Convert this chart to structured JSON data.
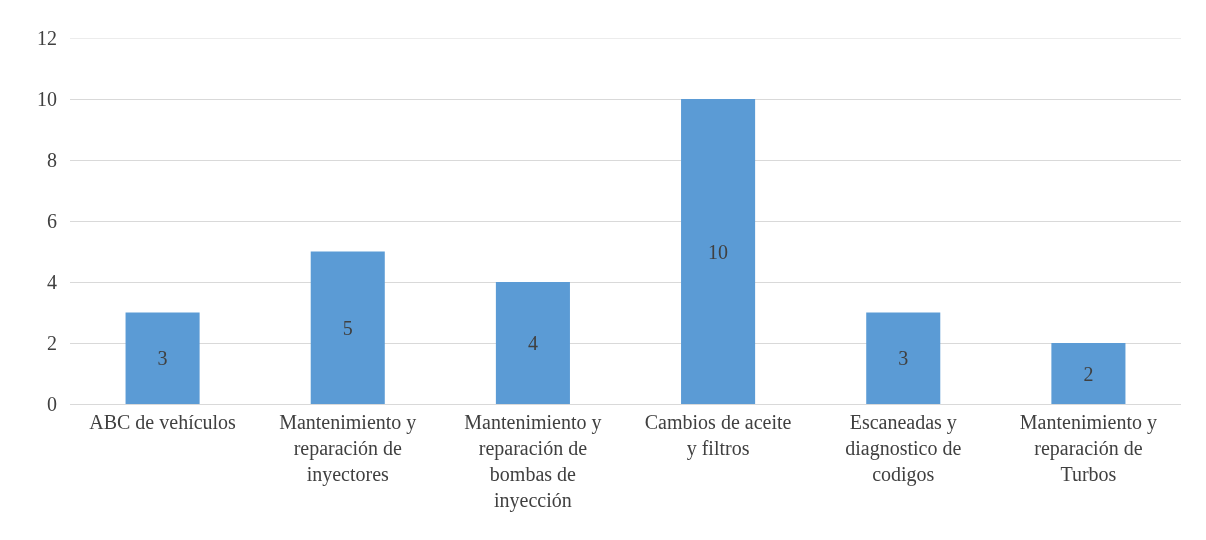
{
  "chart_data": {
    "type": "bar",
    "categories": [
      "ABC de vehículos",
      "Mantenimiento y reparación de inyectores",
      "Mantenimiento y reparación de bombas de inyección",
      "Cambios de aceite y filtros",
      "Escaneadas y diagnostico de codigos",
      "Mantenimiento y reparación de Turbos"
    ],
    "values": [
      3,
      5,
      4,
      10,
      3,
      2
    ],
    "color": "#5b9bd5",
    "ylim": [
      0,
      12
    ],
    "yticks": [
      0,
      2,
      4,
      6,
      8,
      10,
      12
    ],
    "grid": "y",
    "data_labels": true
  }
}
